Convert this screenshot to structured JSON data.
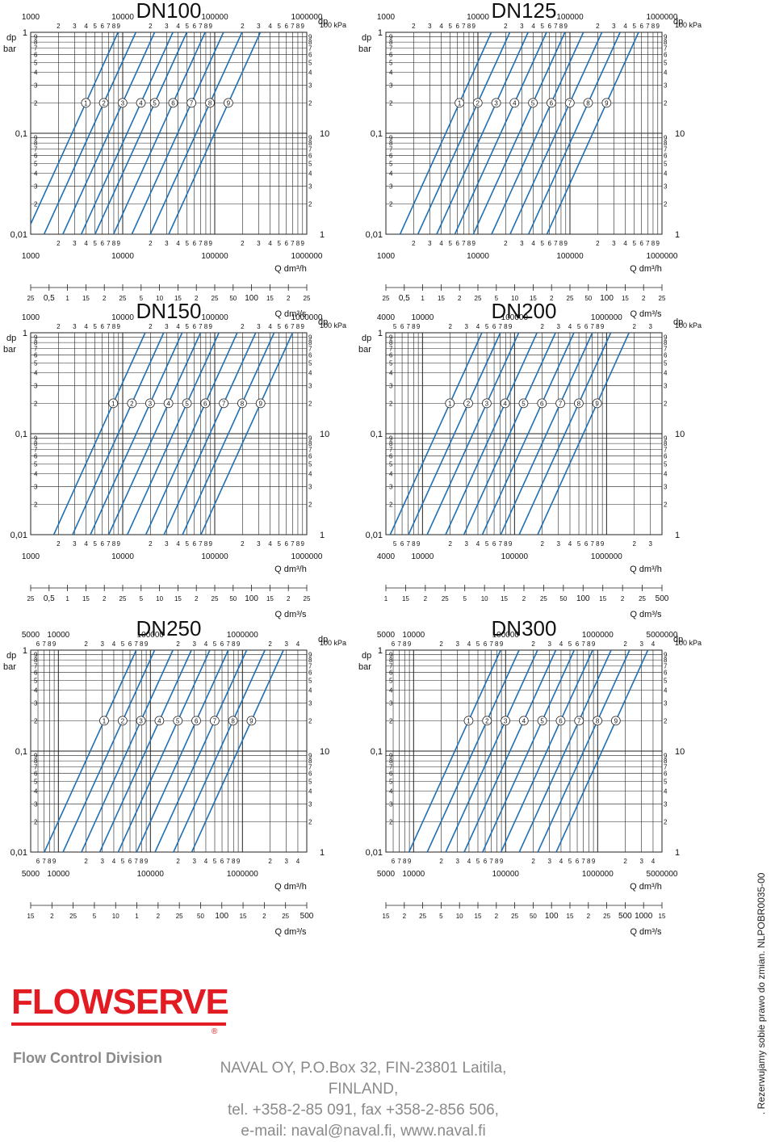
{
  "colors": {
    "line": "#1f6fb3",
    "grid": "#222222",
    "brand": "#e31b23",
    "footer_text": "#8a8a8a"
  },
  "common": {
    "dp_label": "dp",
    "bar_label": "bar",
    "kpa_label": "100 kPa",
    "q_h_label": "Q dm³/h",
    "q_s_label": "Q dm³/s",
    "left_y_major": [
      "1",
      "0,1",
      "0,01"
    ],
    "right_y_major": [
      "100 kPa",
      "10",
      "1"
    ],
    "y_minor": [
      "9",
      "8",
      "7",
      "6",
      "5",
      "4",
      "3",
      "2"
    ],
    "curve_ids": [
      "1",
      "2",
      "3",
      "4",
      "5",
      "6",
      "7",
      "8",
      "9"
    ]
  },
  "chart_data": [
    {
      "type": "line",
      "title": "DN100",
      "xlabel": "Q dm³/h",
      "ylabel": "dp bar",
      "x_scale": "log",
      "y_scale": "log",
      "xlim": [
        1000,
        1000000
      ],
      "ylim": [
        0.01,
        1
      ],
      "x_top_ticks": [
        "1000",
        "10000",
        "100000",
        "1000000"
      ],
      "x_bottom_ticks": [
        "1000",
        "10000",
        "100000",
        "1000000"
      ],
      "x_minor_ticks": [
        "2",
        "3",
        "4",
        "5",
        "6",
        "7",
        "8",
        "9"
      ],
      "secondary_x_ticks": [
        "25",
        "0,5",
        "1",
        "15",
        "2",
        "25",
        "5",
        "10",
        "15",
        "2",
        "25",
        "50",
        "100",
        "15",
        "2",
        "25"
      ],
      "series": [
        {
          "name": "1",
          "x": [
            1000,
            8000
          ],
          "y": [
            0.0126,
            0.81
          ]
        },
        {
          "name": "2",
          "x": [
            1570,
            12500
          ],
          "y": [
            0.0126,
            0.81
          ]
        },
        {
          "name": "3",
          "x": [
            2510,
            20000
          ],
          "y": [
            0.0126,
            0.81
          ]
        },
        {
          "name": "4",
          "x": [
            3980,
            31600
          ],
          "y": [
            0.0126,
            0.81
          ]
        },
        {
          "name": "5",
          "x": [
            5620,
            44700
          ],
          "y": [
            0.0126,
            0.81
          ]
        },
        {
          "name": "6",
          "x": [
            8910,
            70800
          ],
          "y": [
            0.0126,
            0.81
          ]
        },
        {
          "name": "7",
          "x": [
            14100,
            112000
          ],
          "y": [
            0.0126,
            0.81
          ]
        },
        {
          "name": "8",
          "x": [
            22400,
            178000
          ],
          "y": [
            0.0126,
            0.81
          ]
        },
        {
          "name": "9",
          "x": [
            35500,
            282000
          ],
          "y": [
            0.0126,
            0.81
          ]
        }
      ]
    },
    {
      "type": "line",
      "title": "DN125",
      "xlabel": "Q dm³/h",
      "ylabel": "dp bar",
      "x_scale": "log",
      "y_scale": "log",
      "xlim": [
        1000,
        1000000
      ],
      "ylim": [
        0.01,
        1
      ],
      "x_top_ticks": [
        "1000",
        "10000",
        "100000",
        "1000000"
      ],
      "x_bottom_ticks": [
        "1000",
        "10000",
        "100000",
        "1000000"
      ],
      "x_minor_ticks": [
        "2",
        "3",
        "4",
        "5",
        "6",
        "7",
        "8",
        "9"
      ],
      "secondary_x_ticks": [
        "25",
        "0,5",
        "1",
        "15",
        "2",
        "25",
        "5",
        "10",
        "15",
        "2",
        "25",
        "50",
        "100",
        "15",
        "2",
        "25"
      ],
      "series": [
        {
          "name": "1",
          "x": [
            1600,
            12600
          ],
          "y": [
            0.0126,
            0.81
          ]
        },
        {
          "name": "2",
          "x": [
            2500,
            20000
          ],
          "y": [
            0.0126,
            0.81
          ]
        },
        {
          "name": "3",
          "x": [
            4000,
            31600
          ],
          "y": [
            0.0126,
            0.81
          ]
        },
        {
          "name": "4",
          "x": [
            6300,
            50100
          ],
          "y": [
            0.0126,
            0.81
          ]
        },
        {
          "name": "5",
          "x": [
            10000,
            79400
          ],
          "y": [
            0.0126,
            0.81
          ]
        },
        {
          "name": "6",
          "x": [
            15800,
            126000
          ],
          "y": [
            0.0126,
            0.81
          ]
        },
        {
          "name": "7",
          "x": [
            25100,
            200000
          ],
          "y": [
            0.0126,
            0.81
          ]
        },
        {
          "name": "8",
          "x": [
            39800,
            316000
          ],
          "y": [
            0.0126,
            0.81
          ]
        },
        {
          "name": "9",
          "x": [
            63100,
            501000
          ],
          "y": [
            0.0126,
            0.81
          ]
        }
      ]
    },
    {
      "type": "line",
      "title": "DN150",
      "xlabel": "Q dm³/h",
      "ylabel": "dp bar",
      "x_scale": "log",
      "y_scale": "log",
      "xlim": [
        1000,
        1000000
      ],
      "ylim": [
        0.01,
        1
      ],
      "x_top_ticks": [
        "1000",
        "10000",
        "100000",
        "1000000"
      ],
      "x_bottom_ticks": [
        "1000",
        "10000",
        "100000",
        "1000000"
      ],
      "x_minor_ticks": [
        "2",
        "3",
        "4",
        "5",
        "6",
        "7",
        "8",
        "9"
      ],
      "secondary_x_ticks": [
        "25",
        "0,5",
        "1",
        "15",
        "2",
        "25",
        "5",
        "10",
        "15",
        "2",
        "25",
        "50",
        "100",
        "15",
        "2",
        "25"
      ],
      "series": [
        {
          "name": "1",
          "x": [
            2000,
            15800
          ],
          "y": [
            0.0126,
            0.81
          ]
        },
        {
          "name": "2",
          "x": [
            3200,
            25100
          ],
          "y": [
            0.0126,
            0.81
          ]
        },
        {
          "name": "3",
          "x": [
            5000,
            39800
          ],
          "y": [
            0.0126,
            0.81
          ]
        },
        {
          "name": "4",
          "x": [
            7900,
            63100
          ],
          "y": [
            0.0126,
            0.81
          ]
        },
        {
          "name": "5",
          "x": [
            12600,
            100000
          ],
          "y": [
            0.0126,
            0.81
          ]
        },
        {
          "name": "6",
          "x": [
            20000,
            158000
          ],
          "y": [
            0.0126,
            0.81
          ]
        },
        {
          "name": "7",
          "x": [
            31600,
            251000
          ],
          "y": [
            0.0126,
            0.81
          ]
        },
        {
          "name": "8",
          "x": [
            50100,
            398000
          ],
          "y": [
            0.0126,
            0.81
          ]
        },
        {
          "name": "9",
          "x": [
            79400,
            631000
          ],
          "y": [
            0.0126,
            0.81
          ]
        }
      ]
    },
    {
      "type": "line",
      "title": "DN200",
      "xlabel": "Q dm³/h",
      "ylabel": "dp bar",
      "x_scale": "log",
      "y_scale": "log",
      "xlim": [
        4000,
        4000000
      ],
      "ylim": [
        0.01,
        1
      ],
      "x_top_ticks": [
        "4000",
        "10000",
        "100000",
        "1000000"
      ],
      "x_bottom_ticks": [
        "4000",
        "10000",
        "100000",
        "1000000"
      ],
      "x_minor_ticks": [
        "2",
        "3",
        "4",
        "5",
        "6",
        "7",
        "8",
        "9"
      ],
      "secondary_x_ticks": [
        "1",
        "15",
        "2",
        "25",
        "5",
        "10",
        "15",
        "2",
        "25",
        "50",
        "100",
        "15",
        "2",
        "25",
        "500"
      ],
      "series": [
        {
          "name": "1",
          "x": [
            5000,
            39800
          ],
          "y": [
            0.0126,
            0.81
          ]
        },
        {
          "name": "2",
          "x": [
            7900,
            63100
          ],
          "y": [
            0.0126,
            0.81
          ]
        },
        {
          "name": "3",
          "x": [
            12600,
            100000
          ],
          "y": [
            0.0126,
            0.81
          ]
        },
        {
          "name": "4",
          "x": [
            20000,
            158000
          ],
          "y": [
            0.0126,
            0.81
          ]
        },
        {
          "name": "5",
          "x": [
            31600,
            251000
          ],
          "y": [
            0.0126,
            0.81
          ]
        },
        {
          "name": "6",
          "x": [
            50100,
            398000
          ],
          "y": [
            0.0126,
            0.81
          ]
        },
        {
          "name": "7",
          "x": [
            79400,
            631000
          ],
          "y": [
            0.0126,
            0.81
          ]
        },
        {
          "name": "8",
          "x": [
            126000,
            1000000
          ],
          "y": [
            0.0126,
            0.81
          ]
        },
        {
          "name": "9",
          "x": [
            200000,
            1580000
          ],
          "y": [
            0.0126,
            0.81
          ]
        }
      ]
    },
    {
      "type": "line",
      "title": "DN250",
      "xlabel": "Q dm³/h",
      "ylabel": "dp bar",
      "x_scale": "log",
      "y_scale": "log",
      "xlim": [
        5000,
        5000000
      ],
      "ylim": [
        0.01,
        1
      ],
      "x_top_ticks": [
        "5000",
        "10000",
        "100000",
        "1000000"
      ],
      "x_bottom_ticks": [
        "5000",
        "10000",
        "100000",
        "1000000"
      ],
      "x_minor_ticks": [
        "2",
        "3",
        "4",
        "5",
        "6",
        "7",
        "8",
        "9"
      ],
      "secondary_x_ticks": [
        "15",
        "2",
        "25",
        "5",
        "10",
        "1",
        "2",
        "25",
        "50",
        "100",
        "15",
        "2",
        "25",
        "500"
      ],
      "series": [
        {
          "name": "1",
          "x": [
            7900,
            63100
          ],
          "y": [
            0.0126,
            0.81
          ]
        },
        {
          "name": "2",
          "x": [
            12600,
            100000
          ],
          "y": [
            0.0126,
            0.81
          ]
        },
        {
          "name": "3",
          "x": [
            20000,
            158000
          ],
          "y": [
            0.0126,
            0.81
          ]
        },
        {
          "name": "4",
          "x": [
            31600,
            251000
          ],
          "y": [
            0.0126,
            0.81
          ]
        },
        {
          "name": "5",
          "x": [
            50100,
            398000
          ],
          "y": [
            0.0126,
            0.81
          ]
        },
        {
          "name": "6",
          "x": [
            79400,
            631000
          ],
          "y": [
            0.0126,
            0.81
          ]
        },
        {
          "name": "7",
          "x": [
            126000,
            1000000
          ],
          "y": [
            0.0126,
            0.81
          ]
        },
        {
          "name": "8",
          "x": [
            200000,
            1580000
          ],
          "y": [
            0.0126,
            0.81
          ]
        },
        {
          "name": "9",
          "x": [
            316000,
            2510000
          ],
          "y": [
            0.0126,
            0.81
          ]
        }
      ]
    },
    {
      "type": "line",
      "title": "DN300",
      "xlabel": "Q dm³/h",
      "ylabel": "dp bar",
      "x_scale": "log",
      "y_scale": "log",
      "xlim": [
        5000,
        5000000
      ],
      "ylim": [
        0.01,
        1
      ],
      "x_top_ticks": [
        "5000",
        "10000",
        "100000",
        "1000000",
        "5000000"
      ],
      "x_bottom_ticks": [
        "5000",
        "10000",
        "100000",
        "1000000",
        "5000000"
      ],
      "x_minor_ticks": [
        "2",
        "3",
        "4",
        "5",
        "6",
        "7",
        "8",
        "9"
      ],
      "secondary_x_ticks": [
        "15",
        "2",
        "25",
        "5",
        "10",
        "15",
        "2",
        "25",
        "50",
        "100",
        "15",
        "2",
        "25",
        "500",
        "1000",
        "15"
      ],
      "series": [
        {
          "name": "1",
          "x": [
            10000,
            79400
          ],
          "y": [
            0.0126,
            0.81
          ]
        },
        {
          "name": "2",
          "x": [
            15800,
            126000
          ],
          "y": [
            0.0126,
            0.81
          ]
        },
        {
          "name": "3",
          "x": [
            25100,
            200000
          ],
          "y": [
            0.0126,
            0.81
          ]
        },
        {
          "name": "4",
          "x": [
            39800,
            316000
          ],
          "y": [
            0.0126,
            0.81
          ]
        },
        {
          "name": "5",
          "x": [
            63100,
            501000
          ],
          "y": [
            0.0126,
            0.81
          ]
        },
        {
          "name": "6",
          "x": [
            100000,
            794000
          ],
          "y": [
            0.0126,
            0.81
          ]
        },
        {
          "name": "7",
          "x": [
            158000,
            1260000
          ],
          "y": [
            0.0126,
            0.81
          ]
        },
        {
          "name": "8",
          "x": [
            251000,
            2000000
          ],
          "y": [
            0.0126,
            0.81
          ]
        },
        {
          "name": "9",
          "x": [
            398000,
            3160000
          ],
          "y": [
            0.0126,
            0.81
          ]
        }
      ]
    }
  ],
  "footer": {
    "brand": "FLOWSERVE",
    "registered": "®",
    "division": "Flow Control Division",
    "address_line1": "NAVAL OY, P.O.Box 32, FIN-23801 Laitila, FINLAND,",
    "address_line2": "tel. +358-2-85 091, fax +358-2-856 506,",
    "address_line3": "e-mail: naval@naval.fi, www.naval.fi",
    "vertical_note": ". Rezerwujamy sobie prawo do zmian. NLPOBR0035-00"
  }
}
